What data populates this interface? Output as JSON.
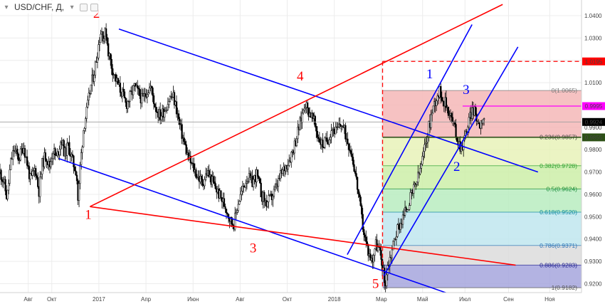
{
  "header": {
    "symbol": "USD/CHF, Д,",
    "caret_icon": "chevron-down-icon",
    "settings_icon": "gear-icon",
    "close_icon": "close-icon"
  },
  "chart_data": {
    "type": "candlestick",
    "ylim": [
      0.916,
      1.047
    ],
    "y_ticks": [
      {
        "v": 1.04,
        "label": "1.0400"
      },
      {
        "v": 1.03,
        "label": "1.0300"
      },
      {
        "v": 1.02,
        "label": "1.0200"
      },
      {
        "v": 1.01,
        "label": "1.0100"
      },
      {
        "v": 1.0,
        "label": "1.0000"
      },
      {
        "v": 0.99,
        "label": "0.9900"
      },
      {
        "v": 0.98,
        "label": "0.9800"
      },
      {
        "v": 0.97,
        "label": "0.9700"
      },
      {
        "v": 0.96,
        "label": "0.9600"
      },
      {
        "v": 0.95,
        "label": "0.9500"
      },
      {
        "v": 0.94,
        "label": "0.9400"
      },
      {
        "v": 0.93,
        "label": "0.9300"
      },
      {
        "v": 0.92,
        "label": "0.9200"
      }
    ],
    "x_range": [
      0,
      24.7
    ],
    "x_ticks": [
      {
        "t": 1.2,
        "label": "Авг"
      },
      {
        "t": 2.2,
        "label": "Окт"
      },
      {
        "t": 4.2,
        "label": "2017"
      },
      {
        "t": 6.2,
        "label": "Апр"
      },
      {
        "t": 8.2,
        "label": "Июн"
      },
      {
        "t": 10.2,
        "label": "Авг"
      },
      {
        "t": 12.2,
        "label": "Окт"
      },
      {
        "t": 14.2,
        "label": "2018"
      },
      {
        "t": 16.2,
        "label": "Мар"
      },
      {
        "t": 17.95,
        "label": "Май"
      },
      {
        "t": 19.75,
        "label": "Июл"
      },
      {
        "t": 21.6,
        "label": "Сен"
      },
      {
        "t": 23.35,
        "label": "Ноя"
      }
    ],
    "price_path": [
      [
        0.0,
        0.97
      ],
      [
        0.15,
        0.966
      ],
      [
        0.3,
        0.958
      ],
      [
        0.45,
        0.974
      ],
      [
        0.6,
        0.98
      ],
      [
        0.8,
        0.976
      ],
      [
        1.0,
        0.982
      ],
      [
        1.15,
        0.974
      ],
      [
        1.3,
        0.966
      ],
      [
        1.5,
        0.972
      ],
      [
        1.65,
        0.961
      ],
      [
        1.8,
        0.974
      ],
      [
        1.95,
        0.978
      ],
      [
        2.1,
        0.972
      ],
      [
        2.25,
        0.98
      ],
      [
        2.4,
        0.976
      ],
      [
        2.6,
        0.985
      ],
      [
        2.75,
        0.978
      ],
      [
        2.9,
        0.982
      ],
      [
        3.1,
        0.974
      ],
      [
        3.25,
        0.97
      ],
      [
        3.32,
        0.956
      ],
      [
        3.4,
        0.972
      ],
      [
        3.55,
        0.99
      ],
      [
        3.7,
        0.998
      ],
      [
        3.85,
        1.008
      ],
      [
        4.0,
        1.015
      ],
      [
        4.1,
        1.021
      ],
      [
        4.2,
        1.028
      ],
      [
        4.3,
        1.034
      ],
      [
        4.4,
        1.03
      ],
      [
        4.5,
        1.033
      ],
      [
        4.6,
        1.024
      ],
      [
        4.75,
        1.017
      ],
      [
        4.9,
        1.012
      ],
      [
        5.05,
        1.008
      ],
      [
        5.2,
        1.005
      ],
      [
        5.35,
        1.0
      ],
      [
        5.5,
        1.003
      ],
      [
        5.7,
        1.008
      ],
      [
        5.9,
        1.005
      ],
      [
        6.05,
        1.002
      ],
      [
        6.2,
        1.006
      ],
      [
        6.4,
        1.008
      ],
      [
        6.6,
        0.999
      ],
      [
        6.8,
        0.995
      ],
      [
        7.0,
        0.998
      ],
      [
        7.2,
        1.003
      ],
      [
        7.35,
        1.004
      ],
      [
        7.5,
        0.998
      ],
      [
        7.65,
        0.99
      ],
      [
        7.8,
        0.984
      ],
      [
        8.0,
        0.976
      ],
      [
        8.2,
        0.972
      ],
      [
        8.4,
        0.968
      ],
      [
        8.6,
        0.965
      ],
      [
        8.8,
        0.97
      ],
      [
        9.0,
        0.966
      ],
      [
        9.2,
        0.962
      ],
      [
        9.4,
        0.958
      ],
      [
        9.6,
        0.954
      ],
      [
        9.8,
        0.948
      ],
      [
        9.95,
        0.947
      ],
      [
        10.1,
        0.956
      ],
      [
        10.3,
        0.962
      ],
      [
        10.5,
        0.968
      ],
      [
        10.7,
        0.965
      ],
      [
        10.9,
        0.969
      ],
      [
        11.1,
        0.96
      ],
      [
        11.3,
        0.956
      ],
      [
        11.5,
        0.958
      ],
      [
        11.7,
        0.962
      ],
      [
        11.9,
        0.968
      ],
      [
        12.1,
        0.972
      ],
      [
        12.3,
        0.976
      ],
      [
        12.5,
        0.982
      ],
      [
        12.65,
        0.988
      ],
      [
        12.8,
        0.994
      ],
      [
        12.95,
        1.002
      ],
      [
        13.05,
        0.998
      ],
      [
        13.2,
        0.996
      ],
      [
        13.35,
        0.992
      ],
      [
        13.5,
        0.986
      ],
      [
        13.7,
        0.982
      ],
      [
        13.9,
        0.984
      ],
      [
        14.1,
        0.99
      ],
      [
        14.3,
        0.988
      ],
      [
        14.5,
        0.992
      ],
      [
        14.7,
        0.986
      ],
      [
        14.9,
        0.98
      ],
      [
        15.05,
        0.972
      ],
      [
        15.2,
        0.962
      ],
      [
        15.35,
        0.95
      ],
      [
        15.5,
        0.94
      ],
      [
        15.65,
        0.934
      ],
      [
        15.8,
        0.93
      ],
      [
        15.95,
        0.938
      ],
      [
        16.1,
        0.935
      ],
      [
        16.25,
        0.928
      ],
      [
        16.35,
        0.919
      ],
      [
        16.45,
        0.927
      ],
      [
        16.6,
        0.933
      ],
      [
        16.75,
        0.94
      ],
      [
        16.9,
        0.945
      ],
      [
        17.05,
        0.948
      ],
      [
        17.2,
        0.952
      ],
      [
        17.35,
        0.956
      ],
      [
        17.5,
        0.96
      ],
      [
        17.65,
        0.964
      ],
      [
        17.8,
        0.969
      ],
      [
        17.95,
        0.976
      ],
      [
        18.1,
        0.984
      ],
      [
        18.25,
        0.992
      ],
      [
        18.4,
        0.999
      ],
      [
        18.55,
        1.004
      ],
      [
        18.7,
        1.006
      ],
      [
        18.85,
        1.002
      ],
      [
        19.0,
        0.999
      ],
      [
        19.15,
        0.995
      ],
      [
        19.3,
        0.99
      ],
      [
        19.45,
        0.984
      ],
      [
        19.6,
        0.981
      ],
      [
        19.75,
        0.986
      ],
      [
        19.9,
        0.992
      ],
      [
        20.05,
        0.998
      ],
      [
        20.2,
        0.996
      ],
      [
        20.35,
        0.991
      ],
      [
        20.5,
        0.995
      ],
      [
        20.6,
        0.9924
      ]
    ],
    "indicators": {
      "h_lines": [
        {
          "name": "current-price-line",
          "y": 0.9924,
          "color": "#9e9e9e",
          "x_from": 0,
          "x_to": 24.7
        },
        {
          "name": "target-line",
          "y": 1.0195,
          "color": "#ff0000",
          "dashed": true,
          "x_from": 16.25,
          "x_to": 24.7
        },
        {
          "name": "magenta-line",
          "y": 0.9995,
          "color": "#ff00ff",
          "x_from": 19.65,
          "x_to": 24.7
        },
        {
          "name": "dark-green-line",
          "y": 0.9855,
          "color": "#2d5016",
          "x_from": 16.25,
          "x_to": 24.7
        }
      ],
      "v_lines": [
        {
          "name": "vertical-dashed-line",
          "x": 16.25,
          "y_from": 1.0195,
          "y_to": 0.9182,
          "color": "#ff0000",
          "dashed": true
        }
      ],
      "trendlines": [
        {
          "name": "blue-top-line",
          "x1": 5.05,
          "y1": 1.034,
          "x2": 22.85,
          "y2": 0.97,
          "color": "#0000ff"
        },
        {
          "name": "blue-bottom-line",
          "x1": 2.5,
          "y1": 0.976,
          "x2": 19.75,
          "y2": 0.913,
          "color": "#0000ff"
        },
        {
          "name": "red-upper-line",
          "x1": 3.82,
          "y1": 0.9545,
          "x2": 21.35,
          "y2": 1.045,
          "color": "#ff0000"
        },
        {
          "name": "red-lower-line",
          "x1": 3.82,
          "y1": 0.9545,
          "x2": 21.9,
          "y2": 0.9283,
          "color": "#ff0000"
        },
        {
          "name": "blue-channel-left",
          "x1": 14.75,
          "y1": 0.933,
          "x2": 20.05,
          "y2": 1.036,
          "color": "#0000ff"
        },
        {
          "name": "blue-channel-right",
          "x1": 16.3,
          "y1": 0.9235,
          "x2": 22.0,
          "y2": 1.026,
          "color": "#0000ff"
        }
      ],
      "fib_levels": [
        {
          "ratio": "0",
          "label": "0(1.0065)",
          "y": 1.0065,
          "fill": "#f5b7b7",
          "text": "#777777"
        },
        {
          "ratio": "0.236",
          "label": "0.236(0.9857)",
          "y": 0.9857,
          "fill": "#e8f2b8",
          "text": "#444444"
        },
        {
          "ratio": "0.382",
          "label": "0.382(0.9728)",
          "y": 0.9728,
          "fill": "#cdeea8",
          "text": "#2fa32f"
        },
        {
          "ratio": "0.5",
          "label": "0.5(0.9624)",
          "y": 0.9624,
          "fill": "#b8ecc0",
          "text": "#1c8f3a"
        },
        {
          "ratio": "0.618",
          "label": "0.618(0.9520)",
          "y": 0.952,
          "fill": "#bfe6ee",
          "text": "#0e8a9e"
        },
        {
          "ratio": "0.786",
          "label": "0.786(0.9371)",
          "y": 0.9371,
          "fill": "#dcdcdc",
          "text": "#2e75b6"
        },
        {
          "ratio": "0.886",
          "label": "0.886(0.9283)",
          "y": 0.9283,
          "fill": "#a6a6dd",
          "text": "#202090"
        },
        {
          "ratio": "1",
          "label": "1(0.9182)",
          "y": 0.9182,
          "fill": null,
          "text": "#555555"
        }
      ],
      "fib_x": [
        16.25,
        24.7
      ]
    },
    "annotations": [
      {
        "text": "2",
        "x": 4.1,
        "y": 1.039,
        "color": "#ff0000"
      },
      {
        "text": "1",
        "x": 3.75,
        "y": 0.949,
        "color": "#ff0000"
      },
      {
        "text": "4",
        "x": 12.75,
        "y": 1.011,
        "color": "#ff0000"
      },
      {
        "text": "3",
        "x": 10.75,
        "y": 0.934,
        "color": "#ff0000"
      },
      {
        "text": "5",
        "x": 15.95,
        "y": 0.918,
        "color": "#ff0000"
      },
      {
        "text": "1",
        "x": 18.25,
        "y": 1.012,
        "color": "#0000ff"
      },
      {
        "text": "3",
        "x": 19.8,
        "y": 1.005,
        "color": "#0000ff"
      },
      {
        "text": "2",
        "x": 19.4,
        "y": 0.9705,
        "color": "#0000ff"
      }
    ],
    "price_labels": [
      {
        "y": 1.0195,
        "label": "1.0195",
        "bg": "#ff0000",
        "fg": "#ffffff"
      },
      {
        "y": 0.9995,
        "label": "0.9995",
        "bg": "#ff00ff",
        "fg": "#ffffff"
      },
      {
        "y": 0.9924,
        "label": "0.9924",
        "bg": "#000000",
        "fg": "#ffffff"
      },
      {
        "y": 0.9855,
        "label": "0.9855",
        "bg": "#2d5016",
        "fg": "#ffffff"
      }
    ]
  }
}
